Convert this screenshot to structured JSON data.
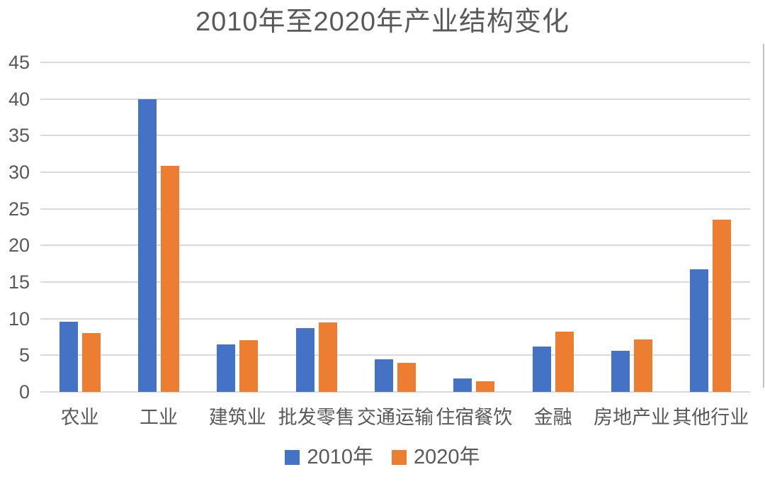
{
  "chart_data": {
    "type": "bar",
    "title": "2010年至2020年产业结构变化",
    "categories": [
      "农业",
      "工业",
      "建筑业",
      "批发零售",
      "交通运输",
      "住宿餐饮",
      "金融",
      "房地产业",
      "其他行业"
    ],
    "series": [
      {
        "name": "2010年",
        "color": "#4472C4",
        "values": [
          9.6,
          40.0,
          6.5,
          8.7,
          4.5,
          1.8,
          6.2,
          5.6,
          16.7
        ]
      },
      {
        "name": "2020年",
        "color": "#ED7D31",
        "values": [
          8.0,
          30.9,
          7.1,
          9.5,
          4.0,
          1.5,
          8.2,
          7.2,
          23.5
        ]
      }
    ],
    "xlabel": "",
    "ylabel": "",
    "ylim": [
      0,
      45
    ],
    "yticks": [
      0,
      5,
      10,
      15,
      20,
      25,
      30,
      35,
      40,
      45
    ],
    "grid": true,
    "legend_position": "bottom"
  },
  "colors": {
    "background": "#ffffff",
    "gridline": "#dadada",
    "axis_text": "#595959",
    "title_text": "#595959"
  }
}
